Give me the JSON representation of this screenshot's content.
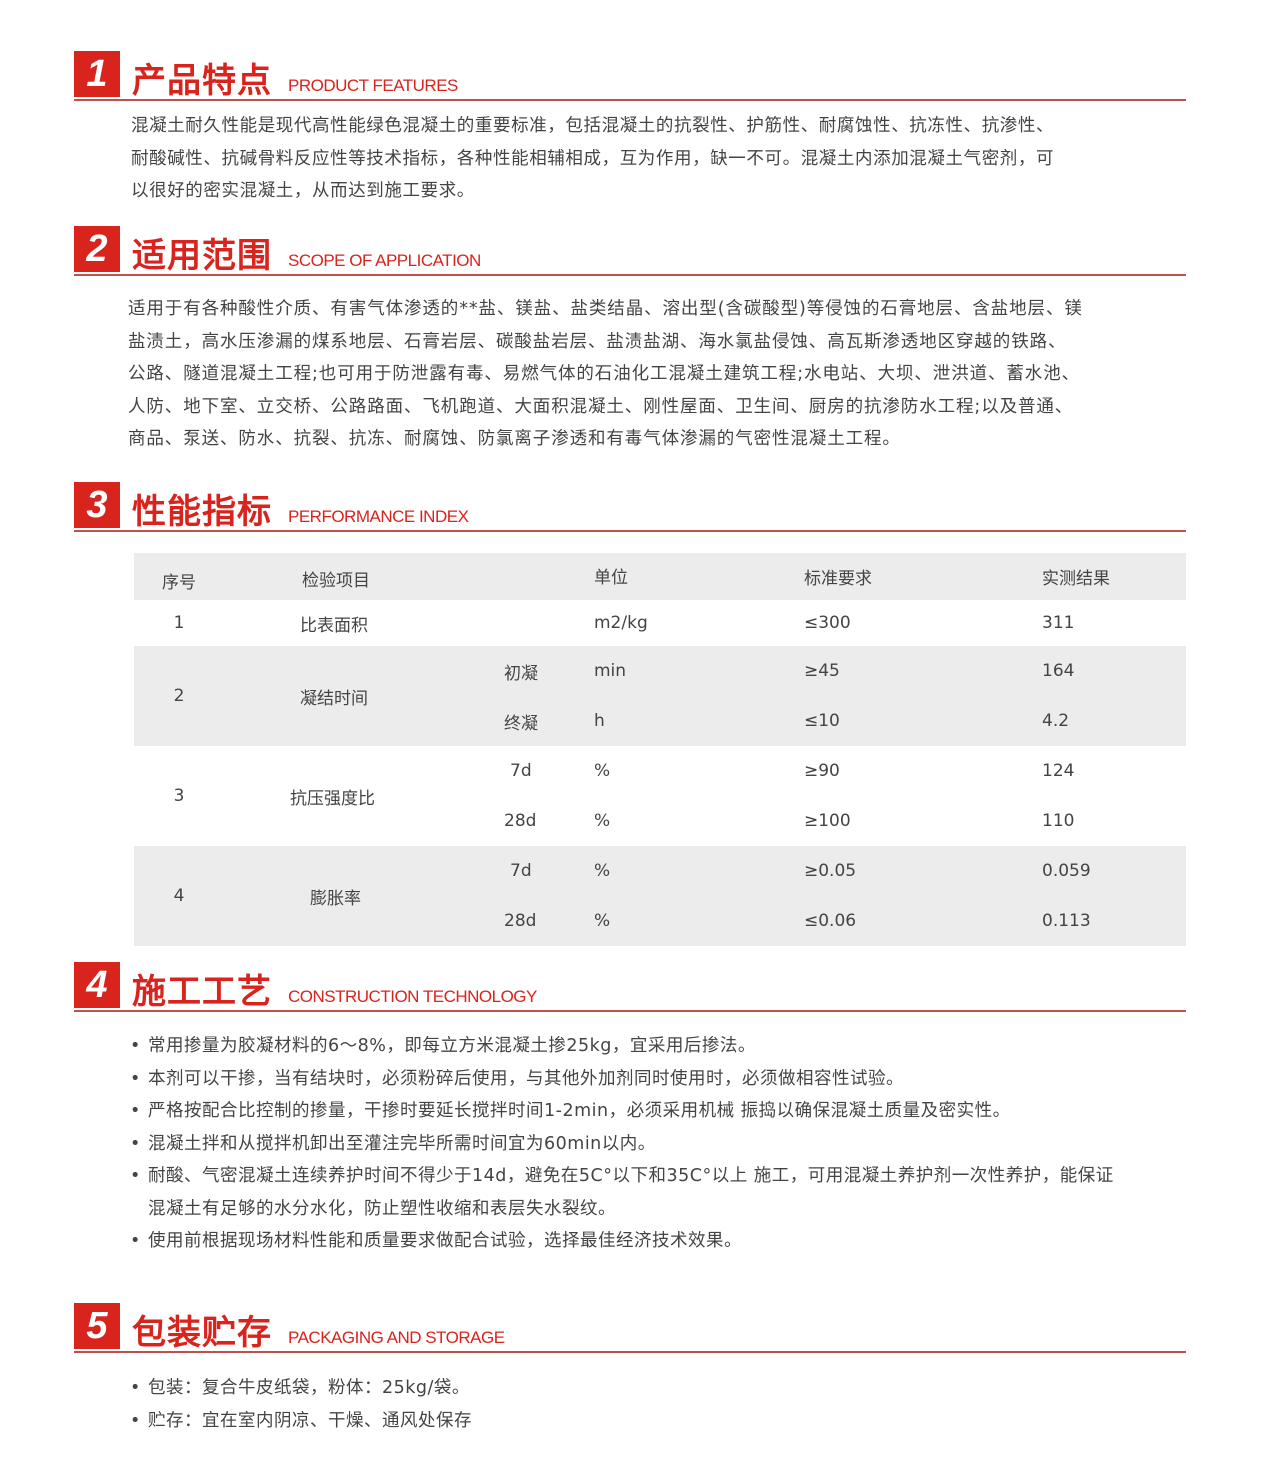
{
  "sections": [
    {
      "num": "1",
      "title": "产品特点",
      "en": "PRODUCT FEATURES"
    },
    {
      "num": "2",
      "title": "适用范围",
      "en": "SCOPE OF APPLICATION"
    },
    {
      "num": "3",
      "title": "性能指标",
      "en": "PERFORMANCE INDEX"
    },
    {
      "num": "4",
      "title": "施工工艺",
      "en": "CONSTRUCTION TECHNOLOGY"
    },
    {
      "num": "5",
      "title": "包装贮存",
      "en": "PACKAGING AND STORAGE"
    }
  ],
  "features": [
    "混凝土耐久性能是现代高性能绿色混凝土的重要标准，包括混凝土的抗裂性、护筋性、耐腐蚀性、抗冻性、抗渗性、",
    "耐酸碱性、抗碱骨料反应性等技术指标，各种性能相辅相成，互为作用，缺一不可。混凝土内添加混凝土气密剂，可",
    "以很好的密实混凝土，从而达到施工要求。"
  ],
  "scope": [
    "适用于有各种酸性介质、有害气体渗透的**盐、镁盐、盐类结晶、溶出型(含碳酸型)等侵蚀的石膏地层、含盐地层、镁",
    "盐渍土，高水压渗漏的煤系地层、石膏岩层、碳酸盐岩层、盐渍盐湖、海水氯盐侵蚀、高瓦斯渗透地区穿越的铁路、",
    "公路、隧道混凝土工程;也可用于防泄露有毒、易燃气体的石油化工混凝土建筑工程;水电站、大坝、泄洪道、蓄水池、",
    "人防、地下室、立交桥、公路路面、飞机跑道、大面积混凝土、刚性屋面、卫生间、厨房的抗渗防水工程;以及普通、",
    "商品、泵送、防水、抗裂、抗冻、耐腐蚀、防氯离子渗透和有毒气体渗漏的气密性混凝土工程。"
  ],
  "table": {
    "headers": [
      "序号",
      "检验项目",
      "单位",
      "标准要求",
      "实测结果"
    ],
    "rows": [
      {
        "no": "1",
        "item": "比表面积",
        "sub": "",
        "unit": "m2/kg",
        "std": "≤300",
        "res": "311"
      },
      {
        "no": "2",
        "item": "凝结时间",
        "sub": "初凝",
        "unit": "min",
        "std": "≥45",
        "res": "164"
      },
      {
        "sub": "终凝",
        "unit": "h",
        "std": "≤10",
        "res": "4.2"
      },
      {
        "no": "3",
        "item": "抗压强度比",
        "sub": "7d",
        "unit": "%",
        "std": "≥90",
        "res": "124"
      },
      {
        "sub": "28d",
        "unit": "%",
        "std": "≥100",
        "res": "110"
      },
      {
        "no": "4",
        "item": "膨胀率",
        "sub": "7d",
        "unit": "%",
        "std": "≥0.05",
        "res": "0.059"
      },
      {
        "sub": "28d",
        "unit": "%",
        "std": "≤0.06",
        "res": "0.113"
      }
    ]
  },
  "construction": [
    [
      "常用掺量为胶凝材料的6～8%，即每立方米混凝土掺25kg，宜采用后掺法。"
    ],
    [
      "本剂可以干掺，当有结块时，必须粉碎后使用，与其他外加剂同时使用时，必须做相容性试验。"
    ],
    [
      "严格按配合比控制的掺量，干掺时要延长搅拌时间1-2min，必须采用机械 振捣以确保混凝土质量及密实性。"
    ],
    [
      "混凝土拌和从搅拌机卸出至灌注完毕所需时间宜为60min以内。"
    ],
    [
      "耐酸、气密混凝土连续养护时间不得少于14d，避免在5C°以下和35C°以上 施工，可用混凝土养护剂一次性养护，能保证",
      "混凝土有足够的水分水化，防止塑性收缩和表层失水裂纹。"
    ],
    [
      "使用前根据现场材料性能和质量要求做配合试验，选择最佳经济技术效果。"
    ]
  ],
  "packaging": [
    "包装：复合牛皮纸袋，粉体：25kg/袋。",
    "贮存：宜在室内阴凉、干燥、通风处保存"
  ],
  "colors": {
    "accent": "#d9231d",
    "band": "#ececec"
  }
}
